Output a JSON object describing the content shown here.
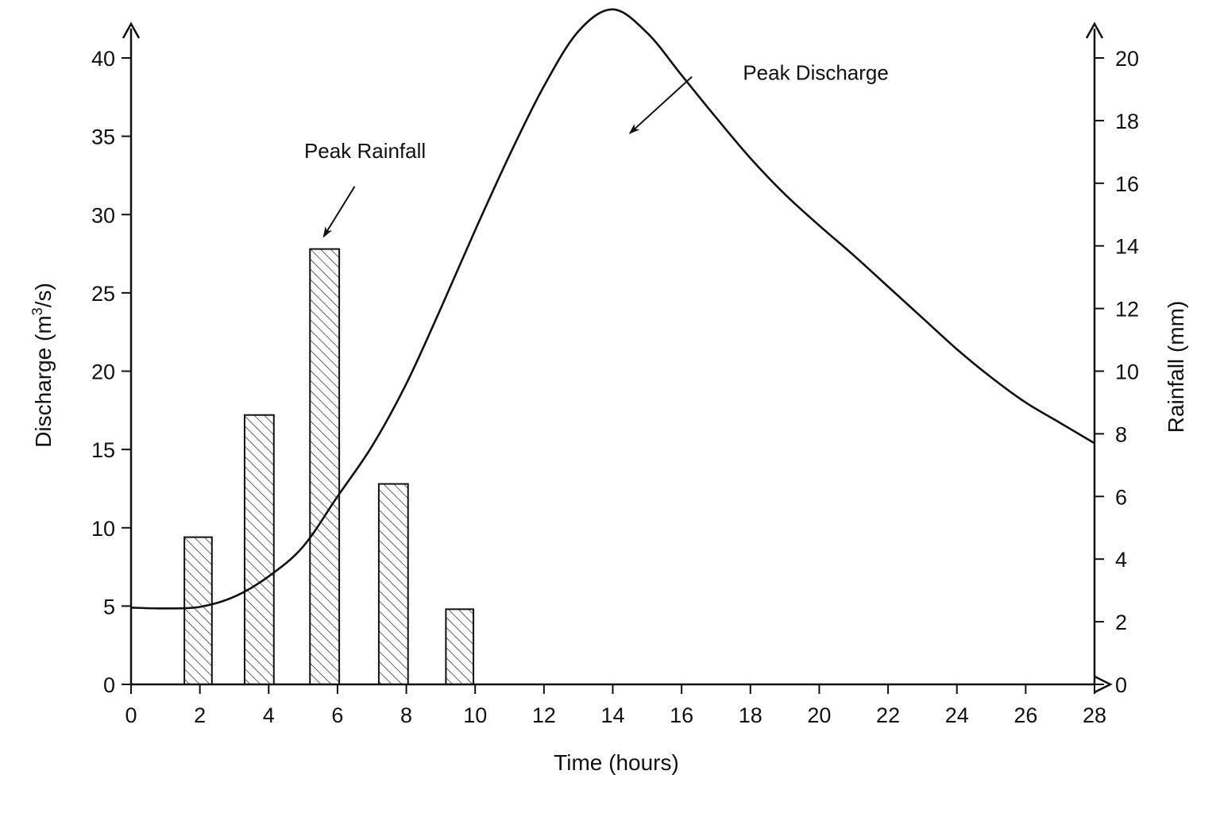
{
  "chart_data": {
    "type": "bar+line",
    "title": "",
    "xlabel": "Time (hours)",
    "ylabel_left_prefix": "Discharge (m",
    "ylabel_left_sup": "3",
    "ylabel_left_suffix": "/s)",
    "ylabel_right": "Rainfall (mm)",
    "xlim": [
      0,
      28
    ],
    "ylim_left": [
      0,
      40
    ],
    "ylim_right": [
      0,
      20
    ],
    "x_ticks": [
      0,
      2,
      4,
      6,
      8,
      10,
      12,
      14,
      16,
      18,
      20,
      22,
      24,
      26,
      28
    ],
    "y_left_ticks": [
      0,
      5,
      10,
      15,
      20,
      25,
      30,
      35,
      40
    ],
    "y_right_ticks": [
      0,
      2,
      4,
      6,
      8,
      10,
      12,
      14,
      16,
      18,
      20
    ],
    "grid": false,
    "rainfall_bars": {
      "axis": "right",
      "pattern": "hatched",
      "bars": [
        {
          "x0": 1.55,
          "x1": 2.35,
          "value": 4.7
        },
        {
          "x0": 3.3,
          "x1": 4.15,
          "value": 8.6
        },
        {
          "x0": 5.2,
          "x1": 6.05,
          "value": 13.9
        },
        {
          "x0": 7.2,
          "x1": 8.05,
          "value": 6.4
        },
        {
          "x0": 9.15,
          "x1": 9.95,
          "value": 2.4
        }
      ]
    },
    "discharge_curve": {
      "axis": "left",
      "points": [
        [
          0,
          4.9
        ],
        [
          1,
          4.85
        ],
        [
          2,
          4.95
        ],
        [
          3,
          5.6
        ],
        [
          4,
          6.9
        ],
        [
          5,
          8.8
        ],
        [
          6,
          12.0
        ],
        [
          7,
          15.2
        ],
        [
          8,
          19.2
        ],
        [
          9,
          24.0
        ],
        [
          10,
          29.0
        ],
        [
          11,
          33.8
        ],
        [
          12,
          38.2
        ],
        [
          13,
          41.7
        ],
        [
          14,
          43.1
        ],
        [
          15,
          41.6
        ],
        [
          16,
          38.9
        ],
        [
          17,
          36.2
        ],
        [
          18,
          33.6
        ],
        [
          19,
          31.3
        ],
        [
          20,
          29.3
        ],
        [
          21,
          27.4
        ],
        [
          22,
          25.4
        ],
        [
          23,
          23.4
        ],
        [
          24,
          21.4
        ],
        [
          25,
          19.6
        ],
        [
          26,
          18.0
        ],
        [
          27,
          16.7
        ],
        [
          28,
          15.4
        ]
      ]
    },
    "annotations": [
      {
        "text": "Peak Rainfall",
        "tx": 6.8,
        "ty": 16.8,
        "ax": 6.5,
        "ay": 15.9,
        "hx": 5.6,
        "hy": 14.3
      },
      {
        "text": "Peak Discharge",
        "tx": 19.9,
        "ty": 19.3,
        "ax": 16.3,
        "ay": 19.4,
        "hx": 14.5,
        "hy": 17.6
      }
    ]
  }
}
